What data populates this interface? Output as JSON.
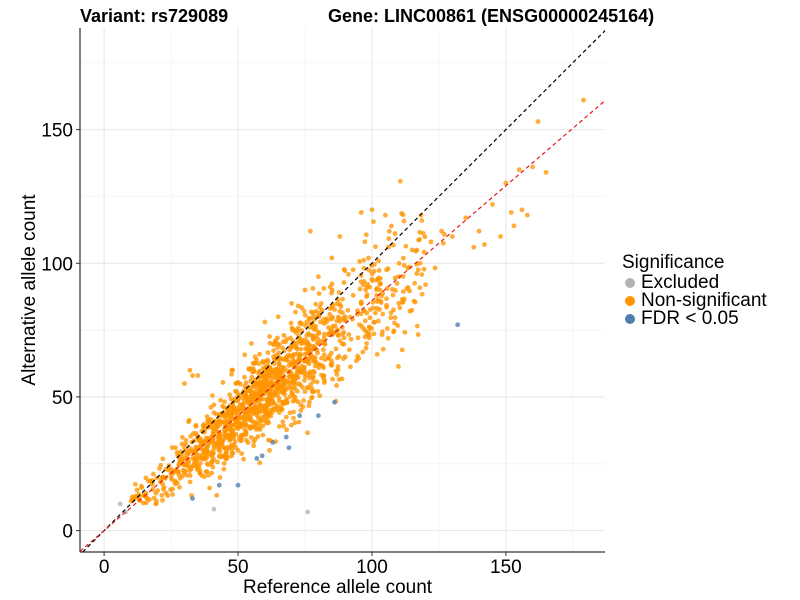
{
  "header": {
    "variant_title": "Variant: rs729089",
    "gene_title": "Gene: LINC00861 (ENSG00000245164)"
  },
  "legend": {
    "title": "Significance",
    "items": [
      {
        "label": "Excluded",
        "color": "#b3b3b3"
      },
      {
        "label": "Non-significant",
        "color": "#ff9500"
      },
      {
        "label": "FDR < 0.05",
        "color": "#4f7fb0"
      }
    ]
  },
  "chart_data": {
    "type": "scatter",
    "title": "Variant: rs729089    Gene: LINC00861 (ENSG00000245164)",
    "xlabel": "Reference allele count",
    "ylabel": "Alternative allele count",
    "xlim": [
      -9,
      187
    ],
    "ylim": [
      -8,
      188
    ],
    "x_ticks": [
      0,
      50,
      100,
      150
    ],
    "y_ticks": [
      0,
      50,
      100,
      150
    ],
    "grid": true,
    "legend_position": "right",
    "reference_lines": [
      {
        "name": "identity",
        "slope": 1.0,
        "intercept": 0,
        "color": "#000000",
        "style": "dashed"
      },
      {
        "name": "fitted",
        "slope": 0.86,
        "intercept": 0,
        "color": "#e41a1c",
        "style": "dashed"
      }
    ],
    "series": [
      {
        "name": "Excluded",
        "color": "#b3b3b3",
        "points": [
          [
            6,
            10
          ],
          [
            8,
            7
          ],
          [
            41,
            8
          ],
          [
            76,
            7
          ]
        ]
      },
      {
        "name": "FDR < 0.05",
        "color": "#4f7fb0",
        "points": [
          [
            33,
            12
          ],
          [
            43,
            17
          ],
          [
            50,
            17
          ],
          [
            57,
            27
          ],
          [
            59,
            28
          ],
          [
            63,
            33
          ],
          [
            69,
            31
          ],
          [
            68,
            35
          ],
          [
            73,
            43
          ],
          [
            80,
            43
          ],
          [
            86,
            48
          ],
          [
            132,
            77
          ]
        ]
      },
      {
        "name": "Non-significant",
        "color": "#ff9500",
        "n_points": 1450,
        "points": [
          [
            11,
            12
          ],
          [
            15,
            13
          ],
          [
            14,
            16
          ],
          [
            18,
            18
          ],
          [
            20,
            15
          ],
          [
            22,
            20
          ],
          [
            25,
            23
          ],
          [
            28,
            25
          ],
          [
            30,
            31
          ],
          [
            33,
            27
          ],
          [
            35,
            35
          ],
          [
            37,
            33
          ],
          [
            39,
            41
          ],
          [
            42,
            37
          ],
          [
            44,
            44
          ],
          [
            46,
            40
          ],
          [
            48,
            47
          ],
          [
            50,
            45
          ],
          [
            52,
            52
          ],
          [
            55,
            50
          ],
          [
            57,
            55
          ],
          [
            60,
            53
          ],
          [
            62,
            61
          ],
          [
            65,
            58
          ],
          [
            67,
            64
          ],
          [
            70,
            62
          ],
          [
            72,
            68
          ],
          [
            75,
            66
          ],
          [
            78,
            72
          ],
          [
            80,
            70
          ],
          [
            83,
            78
          ],
          [
            85,
            74
          ],
          [
            88,
            82
          ],
          [
            90,
            80
          ],
          [
            93,
            88
          ],
          [
            96,
            85
          ],
          [
            100,
            94
          ],
          [
            103,
            90
          ],
          [
            106,
            98
          ],
          [
            110,
            95
          ],
          [
            115,
            105
          ],
          [
            118,
            100
          ],
          [
            122,
            108
          ],
          [
            126,
            112
          ],
          [
            130,
            110
          ],
          [
            135,
            117
          ],
          [
            138,
            106
          ],
          [
            140,
            112
          ],
          [
            142,
            107
          ],
          [
            145,
            122
          ],
          [
            148,
            110
          ],
          [
            150,
            130
          ],
          [
            152,
            119
          ],
          [
            153,
            114
          ],
          [
            155,
            135
          ],
          [
            156,
            120
          ],
          [
            158,
            118
          ],
          [
            160,
            136
          ],
          [
            162,
            153
          ],
          [
            165,
            134
          ],
          [
            179,
            161
          ],
          [
            48,
            60
          ],
          [
            55,
            70
          ],
          [
            60,
            78
          ],
          [
            65,
            80
          ],
          [
            70,
            85
          ],
          [
            75,
            90
          ],
          [
            80,
            95
          ],
          [
            85,
            102
          ],
          [
            88,
            110
          ],
          [
            96,
            119
          ],
          [
            100,
            120
          ],
          [
            105,
            118
          ],
          [
            77,
            112
          ],
          [
            38,
            22
          ],
          [
            40,
            25
          ],
          [
            45,
            28
          ],
          [
            50,
            30
          ],
          [
            58,
            40
          ],
          [
            62,
            44
          ],
          [
            68,
            48
          ],
          [
            75,
            52
          ],
          [
            82,
            58
          ],
          [
            90,
            65
          ],
          [
            98,
            70
          ],
          [
            110,
            85
          ],
          [
            120,
            92
          ],
          [
            30,
            55
          ],
          [
            32,
            60
          ],
          [
            33,
            58
          ],
          [
            35,
            58
          ]
        ]
      }
    ]
  }
}
